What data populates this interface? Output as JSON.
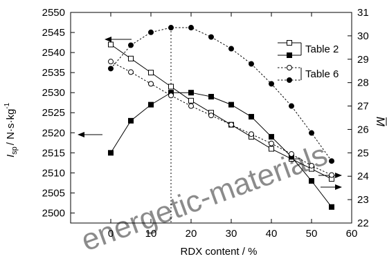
{
  "chart_data": {
    "type": "line",
    "xlabel": "RDX content  / %",
    "ylabel_left_main": "I",
    "ylabel_left_sub": "sp",
    "ylabel_left_units": "/ N·s·kg",
    "ylabel_left_sup": "-1",
    "ylabel_right_main": "M",
    "x_ticks": [
      0,
      10,
      20,
      30,
      40,
      50,
      60
    ],
    "y_left_ticks": [
      2500,
      2505,
      2510,
      2515,
      2520,
      2525,
      2530,
      2535,
      2540,
      2545,
      2550
    ],
    "y_right_ticks": [
      22,
      23,
      24,
      25,
      26,
      27,
      28,
      29,
      30,
      31
    ],
    "xlim": [
      -10,
      60
    ],
    "ylim_left": [
      2497.5,
      2550
    ],
    "ylim_right": [
      22,
      31
    ],
    "vertical_reference_x": 15,
    "legend_placement": "upper-right",
    "series": [
      {
        "name": "",
        "axis": "left",
        "marker": "square-open",
        "line": "solid",
        "x": [
          0,
          5,
          10,
          15,
          20,
          25,
          30,
          35,
          40,
          45,
          50,
          55
        ],
        "values": [
          2542,
          2538.5,
          2535,
          2531.5,
          2528,
          2525,
          2522,
          2519,
          2516,
          2513.5,
          2511,
          2508.5
        ]
      },
      {
        "name": "Table 2",
        "axis": "left",
        "marker": "square-filled",
        "line": "solid",
        "x": [
          0,
          5,
          10,
          15,
          20,
          25,
          30,
          35,
          40,
          45,
          50,
          55
        ],
        "values": [
          2515,
          2523,
          2527,
          2530,
          2530,
          2529,
          2527,
          2524,
          2519,
          2514,
          2508,
          2501.5
        ]
      },
      {
        "name": "",
        "axis": "right",
        "marker": "circle-open",
        "line": "dotted",
        "x": [
          0,
          5,
          10,
          15,
          20,
          25,
          30,
          35,
          40,
          45,
          50,
          55
        ],
        "values": [
          28.9,
          28.45,
          27.95,
          27.45,
          27.0,
          26.6,
          26.2,
          25.8,
          25.4,
          24.95,
          24.45,
          24.05
        ]
      },
      {
        "name": "Table 6",
        "axis": "right",
        "marker": "circle-filled",
        "line": "dotted",
        "x": [
          0,
          5,
          10,
          15,
          20,
          25,
          30,
          35,
          40,
          45,
          50,
          55
        ],
        "values": [
          28.6,
          29.6,
          30.15,
          30.35,
          30.35,
          29.95,
          29.45,
          28.8,
          27.95,
          27.0,
          25.85,
          24.65
        ]
      }
    ],
    "watermark": "energetic-materials"
  }
}
